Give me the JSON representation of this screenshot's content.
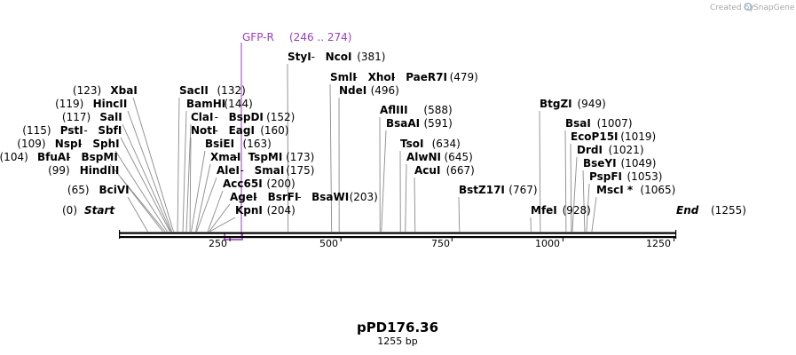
{
  "credit": {
    "prefix": "Created by",
    "brand": "SnapGene"
  },
  "plasmid": {
    "name": "pPD176.36",
    "length_label": "1255 bp",
    "length": 1255
  },
  "colors": {
    "feature": "#9b3dbf",
    "backbone": "#000000",
    "pointer": "#8a8a8a"
  },
  "start": {
    "label": "Start",
    "pos": 0,
    "pos_label": "(0)"
  },
  "end": {
    "label": "End",
    "pos": 1255,
    "pos_label": "(1255)"
  },
  "ticks": [
    "250",
    "500",
    "750",
    "1000",
    "1250"
  ],
  "feature": {
    "name": "GFP-R",
    "range": "(246 .. 274)",
    "start": 246,
    "end": 274
  },
  "sites": [
    {
      "names": [
        "BciVI"
      ],
      "pos": 65,
      "pos_label": "(65)"
    },
    {
      "names": [
        "HindIII"
      ],
      "pos": 99,
      "pos_label": "(99)"
    },
    {
      "names": [
        "BfuAI",
        "BspMI"
      ],
      "pos": 104,
      "pos_label": "(104)"
    },
    {
      "names": [
        "NspI",
        "SphI"
      ],
      "pos": 109,
      "pos_label": "(109)"
    },
    {
      "names": [
        "PstI",
        "SbfI"
      ],
      "pos": 115,
      "pos_label": "(115)"
    },
    {
      "names": [
        "SalI"
      ],
      "pos": 117,
      "pos_label": "(117)"
    },
    {
      "names": [
        "HincII"
      ],
      "pos": 119,
      "pos_label": "(119)"
    },
    {
      "names": [
        "XbaI"
      ],
      "pos": 123,
      "pos_label": "(123)"
    },
    {
      "names": [
        "SacII"
      ],
      "pos": 132,
      "pos_label": "(132)"
    },
    {
      "names": [
        "BamHI"
      ],
      "pos": 144,
      "pos_label": "(144)"
    },
    {
      "names": [
        "ClaI",
        "BspDI"
      ],
      "pos": 152,
      "pos_label": "(152)"
    },
    {
      "names": [
        "NotI",
        "EagI"
      ],
      "pos": 160,
      "pos_label": "(160)"
    },
    {
      "names": [
        "BsiEI"
      ],
      "pos": 163,
      "pos_label": "(163)"
    },
    {
      "names": [
        "XmaI",
        "TspMI"
      ],
      "pos": 173,
      "pos_label": "(173)"
    },
    {
      "names": [
        "AleI",
        "SmaI"
      ],
      "pos": 175,
      "pos_label": "(175)"
    },
    {
      "names": [
        "Acc65I"
      ],
      "pos": 200,
      "pos_label": "(200)"
    },
    {
      "names": [
        "AgeI",
        "BsrFI",
        "BsaWI"
      ],
      "pos": 203,
      "pos_label": "(203)"
    },
    {
      "names": [
        "KpnI"
      ],
      "pos": 204,
      "pos_label": "(204)"
    },
    {
      "names": [
        "StyI",
        "NcoI"
      ],
      "pos": 381,
      "pos_label": "(381)"
    },
    {
      "names": [
        "SmlI",
        "XhoI",
        "PaeR7I"
      ],
      "pos": 479,
      "pos_label": "(479)"
    },
    {
      "names": [
        "NdeI"
      ],
      "pos": 496,
      "pos_label": "(496)"
    },
    {
      "names": [
        "AflIII"
      ],
      "pos": 588,
      "pos_label": "(588)"
    },
    {
      "names": [
        "BsaAI"
      ],
      "pos": 591,
      "pos_label": "(591)"
    },
    {
      "names": [
        "TsoI"
      ],
      "pos": 634,
      "pos_label": "(634)"
    },
    {
      "names": [
        "AlwNI"
      ],
      "pos": 645,
      "pos_label": "(645)"
    },
    {
      "names": [
        "AcuI"
      ],
      "pos": 667,
      "pos_label": "(667)"
    },
    {
      "names": [
        "BstZ17I"
      ],
      "pos": 767,
      "pos_label": "(767)"
    },
    {
      "names": [
        "MfeI"
      ],
      "pos": 928,
      "pos_label": "(928)"
    },
    {
      "names": [
        "BtgZI"
      ],
      "pos": 949,
      "pos_label": "(949)"
    },
    {
      "names": [
        "BsaI"
      ],
      "pos": 1007,
      "pos_label": "(1007)"
    },
    {
      "names": [
        "EcoP15I"
      ],
      "pos": 1019,
      "pos_label": "(1019)"
    },
    {
      "names": [
        "DrdI"
      ],
      "pos": 1021,
      "pos_label": "(1021)"
    },
    {
      "names": [
        "BseYI"
      ],
      "pos": 1049,
      "pos_label": "(1049)"
    },
    {
      "names": [
        "PspFI"
      ],
      "pos": 1053,
      "pos_label": "(1053)"
    },
    {
      "names": [
        "MscI *"
      ],
      "pos": 1065,
      "pos_label": "(1065)"
    }
  ]
}
